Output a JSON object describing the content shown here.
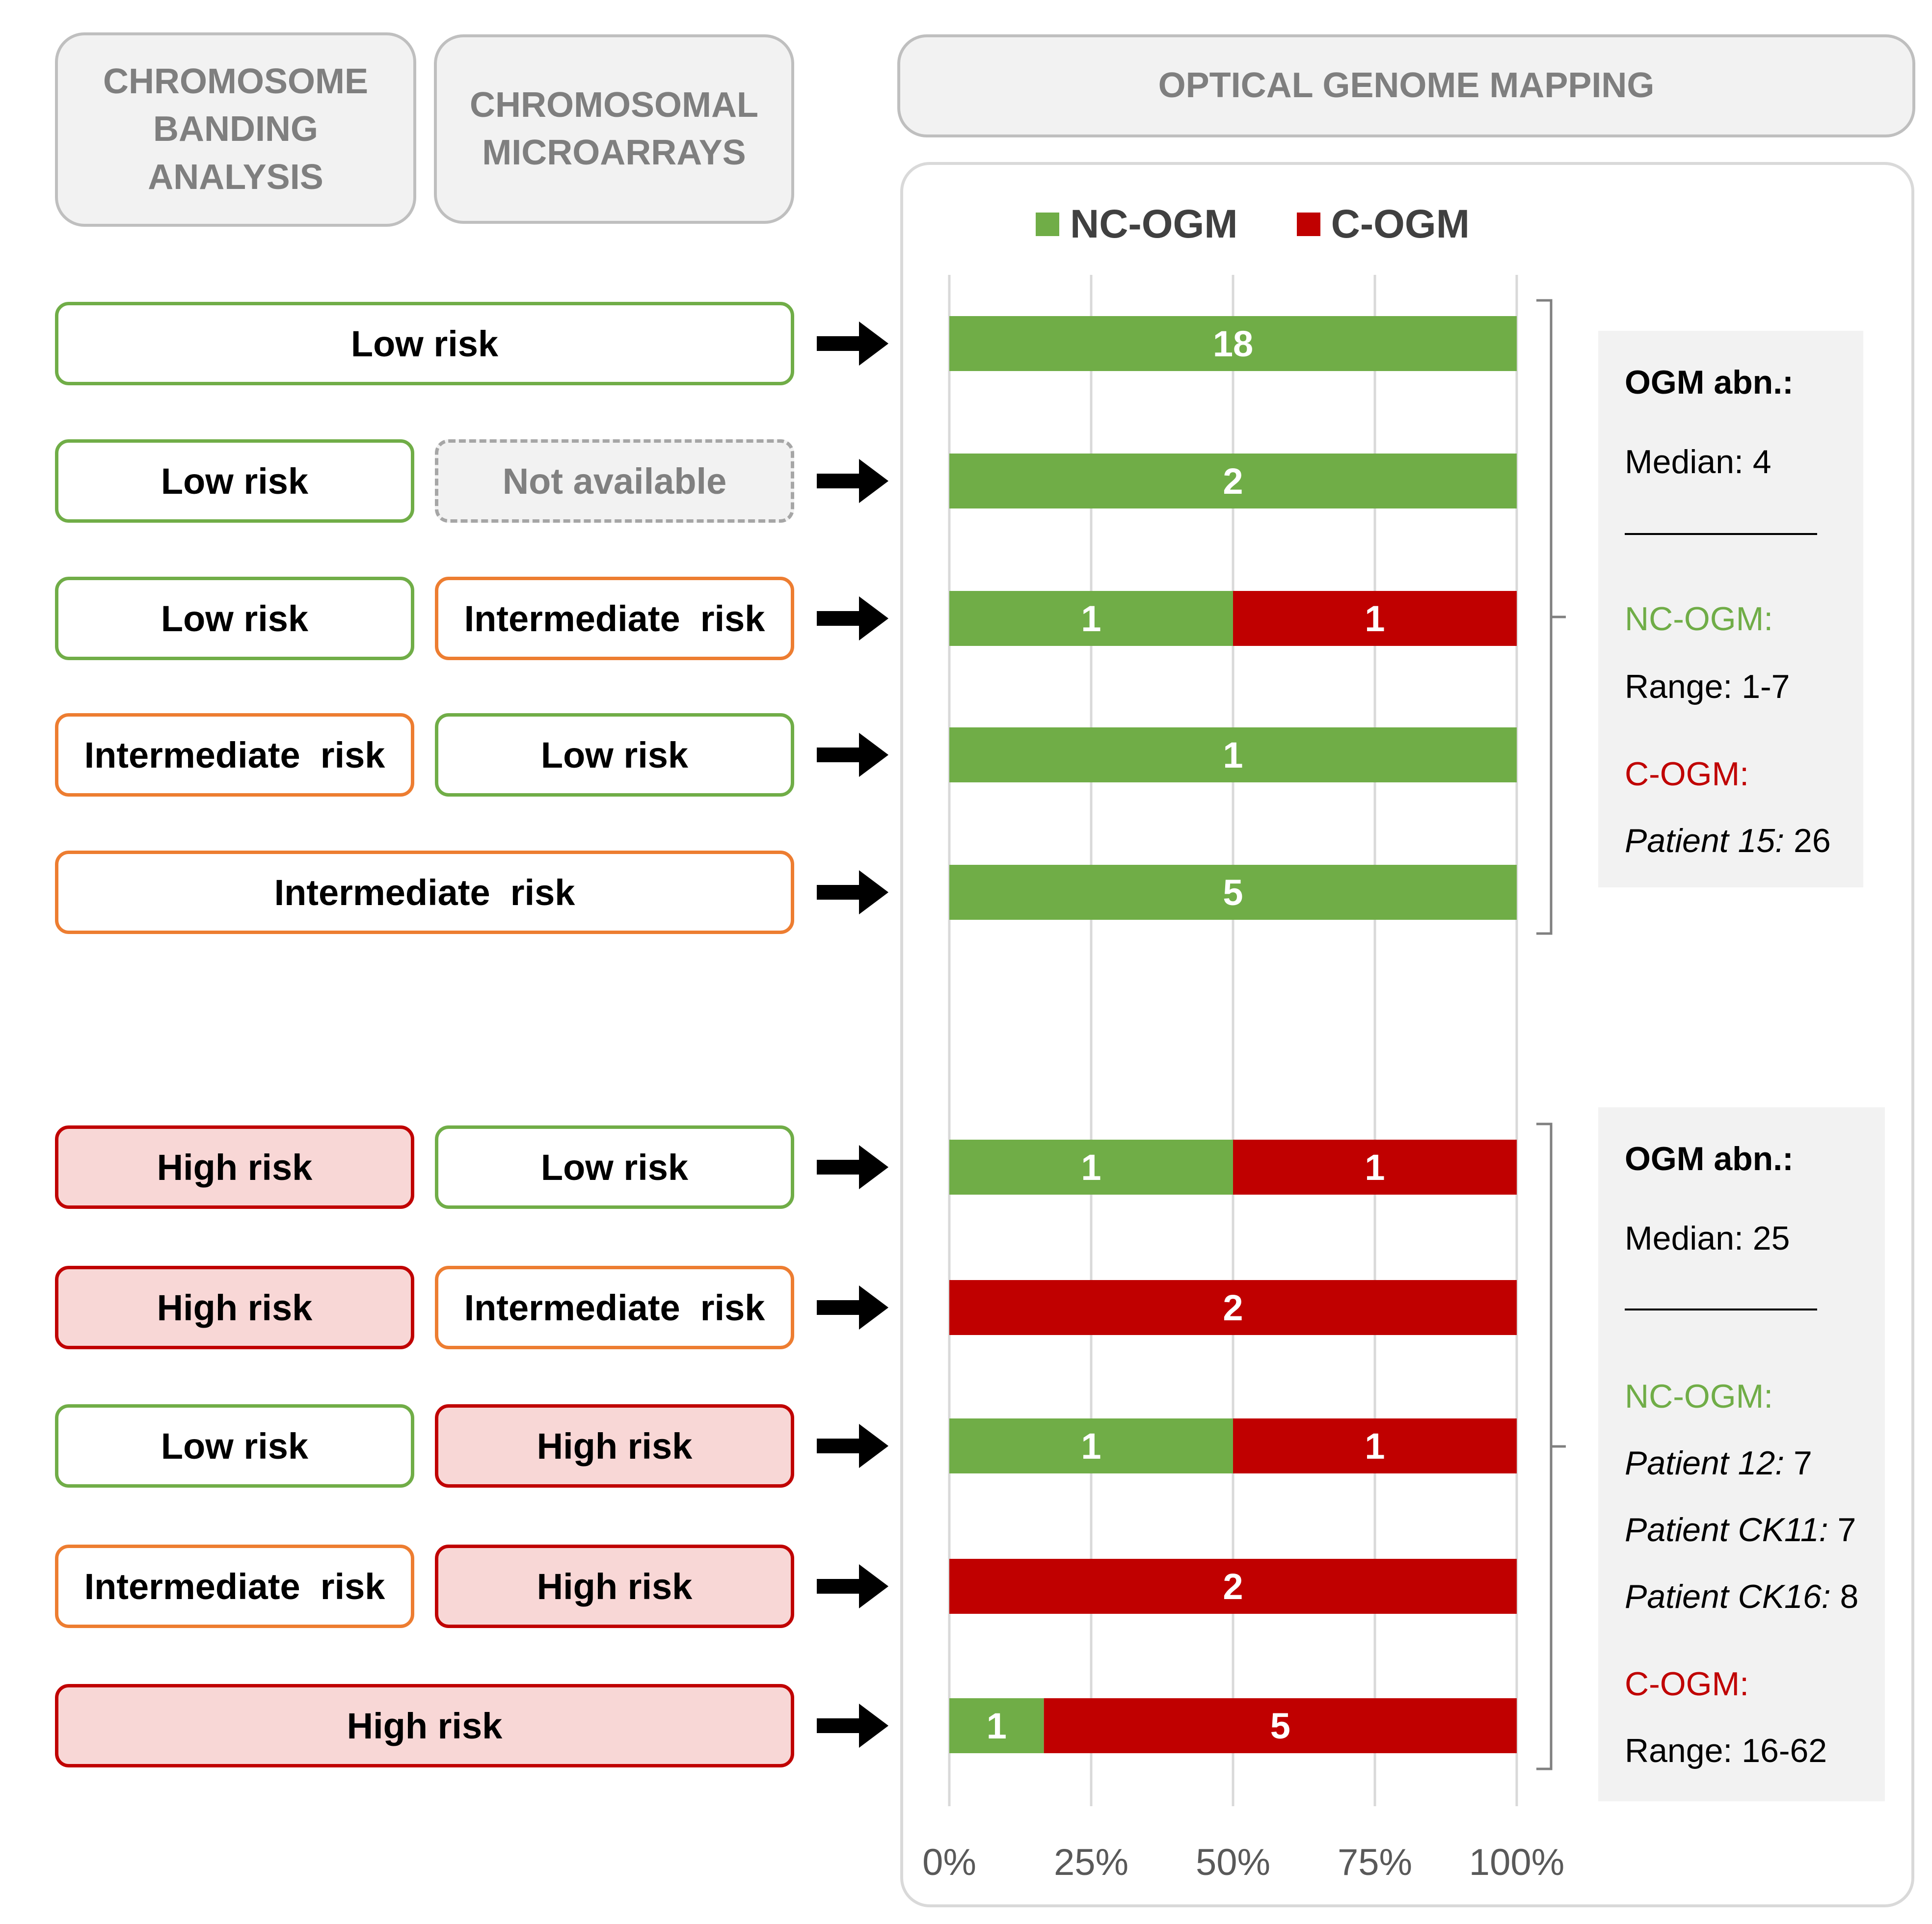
{
  "headers": {
    "banding": "CHROMOSOME BANDING ANALYSIS",
    "microarrays": "CHROMOSOMAL MICROARRAYS",
    "ogm": "OPTICAL GENOME MAPPING"
  },
  "rows": [
    {
      "banding": "Low risk",
      "microarray": null,
      "banding_level": "low"
    },
    {
      "banding": "Low risk",
      "microarray": "Not available",
      "banding_level": "low",
      "microarray_level": "na"
    },
    {
      "banding": "Low risk",
      "microarray": "Intermediate  risk",
      "banding_level": "low",
      "microarray_level": "int"
    },
    {
      "banding": "Intermediate  risk",
      "microarray": "Low risk",
      "banding_level": "int",
      "microarray_level": "low"
    },
    {
      "banding": "Intermediate  risk",
      "microarray": null,
      "banding_level": "int"
    },
    {
      "banding": "High risk",
      "microarray": "Low risk",
      "banding_level": "high",
      "microarray_level": "low"
    },
    {
      "banding": "High risk",
      "microarray": "Intermediate  risk",
      "banding_level": "high",
      "microarray_level": "int"
    },
    {
      "banding": "Low risk",
      "microarray": "High risk",
      "banding_level": "low",
      "microarray_level": "high"
    },
    {
      "banding": "Intermediate  risk",
      "microarray": "High risk",
      "banding_level": "int",
      "microarray_level": "high"
    },
    {
      "banding": "High risk",
      "microarray": null,
      "banding_level": "high"
    }
  ],
  "colors": {
    "nc": "#70ad47",
    "c": "#c00000",
    "low": "#70ad47",
    "intermediate": "#ed7d31",
    "high": "#c00000"
  },
  "chart_data": {
    "type": "bar",
    "orientation": "horizontal",
    "stacked": "percent",
    "title": "",
    "xlabel": "",
    "ylabel": "",
    "xlim": [
      0,
      100
    ],
    "x_ticks": [
      "0%",
      "25%",
      "50%",
      "75%",
      "100%"
    ],
    "legend_position": "top",
    "grid": true,
    "series": [
      {
        "name": "NC-OGM",
        "values": [
          18,
          2,
          1,
          1,
          5,
          1,
          0,
          1,
          0,
          1
        ]
      },
      {
        "name": "C-OGM",
        "values": [
          0,
          0,
          1,
          0,
          0,
          1,
          2,
          1,
          2,
          5
        ]
      }
    ]
  },
  "panels": [
    {
      "title": "OGM abn.:",
      "median": "Median: 4",
      "nc_label": "NC-OGM:",
      "nc_lines": [
        {
          "label": "Range:",
          "value": "1-7"
        }
      ],
      "c_label": "C-OGM:",
      "c_lines": [
        {
          "label": "Patient 15:",
          "value": "26"
        }
      ]
    },
    {
      "title": "OGM abn.:",
      "median": "Median: 25",
      "nc_label": "NC-OGM:",
      "nc_lines": [
        {
          "label": "Patient 12:",
          "value": "7"
        },
        {
          "label": "Patient CK11:",
          "value": "7"
        },
        {
          "label": "Patient CK16:",
          "value": "8"
        }
      ],
      "c_label": "C-OGM:",
      "c_lines": [
        {
          "label": "Range:",
          "value": "16-62"
        }
      ]
    }
  ]
}
